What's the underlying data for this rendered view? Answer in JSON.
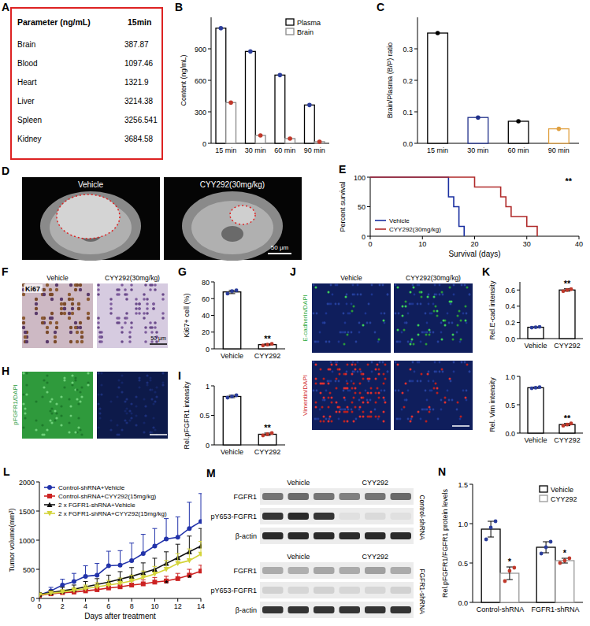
{
  "table": {
    "panel": "A",
    "header": [
      "Parameter (ng/mL)",
      "15min"
    ],
    "rows": [
      [
        "Brain",
        387.87
      ],
      [
        "Blood",
        1097.46
      ],
      [
        "Heart",
        1321.9
      ],
      [
        "Liver",
        3214.38
      ],
      [
        "Spleen",
        3256.541
      ],
      [
        "Kidney",
        3684.58
      ]
    ]
  },
  "images": [
    {
      "panel": "D",
      "titles": [
        "Vehicle",
        "CYY292(30mg/kg)"
      ],
      "scale_bar": "50 μm"
    },
    {
      "panel": "F",
      "titles": [
        "Vehicle",
        "CYY292(30mg/kg)"
      ],
      "stain": "Ki67",
      "scale_bar": "50 μm"
    },
    {
      "panel": "H",
      "stain": "pFGFR1/DAPI"
    },
    {
      "panel": "J",
      "titles": [
        "Vehicle",
        "CYY292(30mg/kg)"
      ],
      "stains": [
        "E-cadherin/DAPI",
        "Vimentin/DAPI"
      ]
    },
    {
      "panel": "M",
      "groups": [
        "Vehicle",
        "CYY292"
      ],
      "blots": [
        {
          "condition": "Control-shRNA",
          "rows": [
            "FGFR1",
            "pY653-FGFR1",
            "β-actin"
          ]
        },
        {
          "condition": "FGFR1-shRNA",
          "rows": [
            "FGFR1",
            "pY653-FGFR1",
            "β-actin"
          ]
        }
      ]
    }
  ],
  "chart_data": [
    {
      "panel": "B",
      "type": "bar",
      "y_label": "Content (ng/mL)",
      "categories": [
        "15 min",
        "30 min",
        "60 min",
        "90 min"
      ],
      "series": [
        {
          "name": "Plasma",
          "color": "#000000",
          "values": [
            1097,
            875,
            650,
            365
          ]
        },
        {
          "name": "Brain",
          "color": "#888888",
          "values": [
            388,
            75,
            45,
            15
          ]
        }
      ],
      "ylim": [
        0,
        1200
      ],
      "yticks": [
        0,
        300,
        600,
        900
      ],
      "legend": "upper right",
      "marker": "circle"
    },
    {
      "panel": "C",
      "type": "bar",
      "y_label": "Brain/Plasma (B/P) ratio",
      "categories": [
        "15 min",
        "30 min",
        "60 min",
        "90 min"
      ],
      "values": [
        0.35,
        0.082,
        0.07,
        0.046
      ],
      "colors": [
        "#000000",
        "#1f2f8a",
        "#000000",
        "#e0a040"
      ],
      "ylim": [
        0,
        0.4
      ],
      "yticks": [
        {
          "value": 0,
          "label": "0.0"
        },
        0.1,
        0.2,
        0.3
      ],
      "marker": "circle"
    },
    {
      "panel": "E",
      "type": "line",
      "x_label": "Survival (days)",
      "y_label": "Percent survival",
      "series": [
        {
          "name": "Vehicle",
          "color": "#1a2fa0",
          "x": [
            0,
            15,
            15,
            16,
            16,
            17,
            17,
            18,
            18
          ],
          "values": [
            100,
            100,
            66.7,
            66.7,
            50,
            50,
            16.7,
            16.7,
            0
          ]
        },
        {
          "name": "CYY292(30mg/kg)",
          "color": "#b02a2a",
          "x": [
            0,
            20,
            20,
            25,
            25,
            26,
            26,
            27,
            27,
            30,
            30,
            32,
            32
          ],
          "values": [
            100,
            100,
            83.3,
            83.3,
            66.7,
            66.7,
            50,
            50,
            33.3,
            33.3,
            16.7,
            16.7,
            0
          ]
        }
      ],
      "xlim": [
        0,
        40
      ],
      "xticks": [
        0,
        10,
        20,
        30,
        40
      ],
      "ylim": [
        0,
        100
      ],
      "yticks": [
        0,
        50,
        100
      ],
      "legend": "lower left",
      "annotations": [
        {
          "text": "**",
          "x": 38,
          "y": 88
        }
      ]
    },
    {
      "panel": "G",
      "type": "bar",
      "y_label": "Ki67+ cell (%)",
      "categories": [
        "Vehicle",
        "CYY292"
      ],
      "values": [
        68,
        5
      ],
      "errors": [
        2,
        1
      ],
      "points": [
        [
          66,
          69,
          70
        ],
        [
          4,
          5,
          6
        ]
      ],
      "color": "#000000",
      "ylim": [
        0,
        80
      ],
      "yticks": [
        0,
        20,
        40,
        60,
        80
      ],
      "annotations": [
        {
          "text": "**",
          "category": "CYY292"
        }
      ]
    },
    {
      "panel": "I",
      "type": "bar",
      "y_label": "Rel.pFGFR1 intensity",
      "categories": [
        "Vehicle",
        "CYY292"
      ],
      "values": [
        0.82,
        0.18
      ],
      "errors": [
        0.02,
        0.02
      ],
      "points": [
        [
          0.8,
          0.82,
          0.84
        ],
        [
          0.16,
          0.18,
          0.2
        ]
      ],
      "color": "#000000",
      "ylim": [
        0,
        1
      ],
      "yticks": [
        0,
        0.5,
        1
      ],
      "annotations": [
        {
          "text": "**",
          "category": "CYY292"
        }
      ]
    },
    {
      "panel": "K",
      "type": "bar",
      "y_label": "Rel.E-cad intensity",
      "categories": [
        "Vehicle",
        "CYY292"
      ],
      "values": [
        0.14,
        0.6
      ],
      "errors": [
        0.005,
        0.015
      ],
      "points": [
        [
          0.135,
          0.14,
          0.145
        ],
        [
          0.585,
          0.6,
          0.61
        ]
      ],
      "color": "#000000",
      "ylim": [
        0,
        0.7
      ],
      "yticks": [
        {
          "value": 0,
          "label": "0.0"
        },
        0.2,
        0.4,
        0.6
      ],
      "annotations": [
        {
          "text": "**",
          "category": "CYY292"
        }
      ]
    },
    {
      "type": "bar",
      "y_label": "Rel. Vim intensity",
      "categories": [
        "Vehicle",
        "CYY292"
      ],
      "values": [
        0.8,
        0.15
      ],
      "errors": [
        0.01,
        0.02
      ],
      "points": [
        [
          0.79,
          0.8,
          0.81
        ],
        [
          0.13,
          0.15,
          0.17
        ]
      ],
      "color": "#000000",
      "ylim": [
        0,
        1
      ],
      "yticks": [
        {
          "value": 0,
          "label": "0.0"
        },
        0.5,
        {
          "value": 1,
          "label": "1.0"
        }
      ],
      "annotations": [
        {
          "text": "**",
          "category": "CYY292"
        }
      ]
    },
    {
      "panel": "L",
      "type": "line",
      "x_label": "Days after treatment",
      "y_label": "Tumor volume(mm³)",
      "x": [
        0,
        1,
        2,
        3,
        4,
        5,
        6,
        7,
        8,
        9,
        10,
        11,
        12,
        13,
        14
      ],
      "series": [
        {
          "name": "Control-shRNA+Vehicle",
          "color": "#2233aa",
          "marker": "circle",
          "values": [
            60,
            130,
            230,
            290,
            380,
            400,
            560,
            570,
            650,
            770,
            900,
            1020,
            1050,
            1200,
            1320
          ],
          "errors": [
            30,
            60,
            100,
            140,
            180,
            200,
            250,
            250,
            300,
            330,
            300,
            350,
            350,
            450,
            480
          ]
        },
        {
          "name": "Control-shRNA+CYY292(15mg/kg)",
          "color": "#cc2222",
          "marker": "square",
          "values": [
            50,
            80,
            100,
            110,
            130,
            150,
            180,
            200,
            230,
            250,
            280,
            300,
            340,
            400,
            470
          ],
          "errors": [
            20,
            30,
            30,
            40,
            40,
            50,
            60,
            60,
            70,
            70,
            80,
            80,
            90,
            100,
            100
          ]
        },
        {
          "name": "2 x FGFR1-shRNA+Vehicle",
          "color": "#111111",
          "marker": "triangle",
          "values": [
            70,
            100,
            130,
            160,
            200,
            240,
            280,
            330,
            380,
            440,
            500,
            600,
            700,
            800,
            900
          ],
          "errors": [
            30,
            40,
            60,
            70,
            90,
            100,
            120,
            130,
            150,
            170,
            190,
            200,
            230,
            270,
            300
          ]
        },
        {
          "name": "2 x FGFR1-shRNA+CYY292(15mg/kg)",
          "color": "#d4d43a",
          "marker": "triangle-down",
          "values": [
            60,
            90,
            110,
            140,
            170,
            200,
            230,
            260,
            300,
            360,
            420,
            500,
            600,
            650,
            760
          ],
          "errors": [
            20,
            30,
            40,
            50,
            60,
            70,
            80,
            90,
            100,
            110,
            130,
            150,
            170,
            200,
            220
          ]
        }
      ],
      "xlim": [
        0,
        14
      ],
      "xticks": [
        0,
        2,
        4,
        6,
        8,
        10,
        12,
        14
      ],
      "ylim": [
        0,
        2000
      ],
      "yticks": [
        0,
        500,
        1000,
        1500,
        2000
      ],
      "legend": "upper left",
      "annotations": [
        {
          "text": "*",
          "x": 11,
          "y": 200
        },
        {
          "text": "*",
          "x": 13,
          "y": 300
        }
      ]
    },
    {
      "panel": "N",
      "type": "bar",
      "y_label": "Rel.pFGFR1/FGFR1 protein levels",
      "categories": [
        "Control-shRNA",
        "FGFR1-shRNA"
      ],
      "series": [
        {
          "name": "Vehicle",
          "color": "#000000",
          "values": [
            0.93,
            0.7
          ],
          "errors": [
            0.1,
            0.07
          ],
          "points": [
            [
              0.8,
              0.95,
              1.03
            ],
            [
              0.62,
              0.7,
              0.77
            ]
          ]
        },
        {
          "name": "CYY292",
          "color": "#999999",
          "values": [
            0.37,
            0.53
          ],
          "errors": [
            0.08,
            0.03
          ],
          "points": [
            [
              0.27,
              0.4,
              0.44
            ],
            [
              0.5,
              0.53,
              0.56
            ]
          ]
        }
      ],
      "ylim": [
        0,
        1.5
      ],
      "yticks": [
        {
          "value": 0,
          "label": "0.0"
        },
        0.5,
        {
          "value": 1,
          "label": "1.0"
        },
        1.5
      ],
      "legend": "upper right",
      "annotations": [
        {
          "text": "*",
          "category": "Control-shRNA",
          "series": "CYY292"
        },
        {
          "text": "*",
          "category": "FGFR1-shRNA",
          "series": "CYY292"
        }
      ]
    }
  ]
}
